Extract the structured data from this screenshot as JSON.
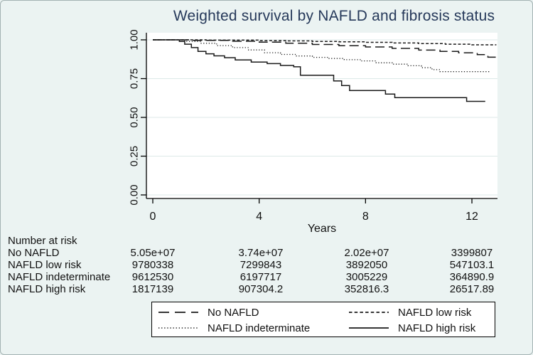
{
  "title": {
    "text": "Weighted survival by NAFLD and fibrosis status"
  },
  "axes": {
    "y": {
      "tick_labels": [
        "1.00",
        "0.75",
        "0.50",
        "0.25",
        "0.00"
      ],
      "tick_values": [
        1.0,
        0.75,
        0.5,
        0.25,
        0.0
      ]
    },
    "x": {
      "tick_labels": [
        "0",
        "4",
        "8",
        "12"
      ],
      "tick_values": [
        0,
        4,
        8,
        12
      ],
      "title": "Years"
    }
  },
  "risk_table": {
    "header": "Number at risk",
    "rows": [
      {
        "label": "No NAFLD",
        "values": [
          "5.05e+07",
          "3.74e+07",
          "2.02e+07",
          "3399807"
        ]
      },
      {
        "label": "NAFLD low risk",
        "values": [
          "9780338",
          "7299843",
          "3892050",
          "547103.1"
        ]
      },
      {
        "label": "NAFLD indeterminate",
        "values": [
          "9612530",
          "6197717",
          "3005229",
          "364890.9"
        ]
      },
      {
        "label": "NAFLD high risk",
        "values": [
          "1817139",
          "907304.2",
          "352816.3",
          "26517.89"
        ]
      }
    ]
  },
  "legend": {
    "items": [
      {
        "label": "No NAFLD",
        "style": "long-dash"
      },
      {
        "label": "NAFLD low risk",
        "style": "short-dash"
      },
      {
        "label": "NAFLD indeterminate",
        "style": "dotted"
      },
      {
        "label": "NAFLD high risk",
        "style": "solid"
      }
    ]
  },
  "colors": {
    "background": "#EBF3F2",
    "plot_bg": "#FFFFFF",
    "grid": "#DDE9E8",
    "axis": "#000000",
    "line": "#1A1A1A",
    "title": "#26395A",
    "legend_bg": "#FFFFFF",
    "legend_border": "#000000"
  },
  "chart_data": {
    "type": "line",
    "subtype": "step-survival",
    "title": "Weighted survival by NAFLD and fibrosis status",
    "xlabel": "Years",
    "ylabel": "",
    "xlim": [
      -0.25,
      13
    ],
    "ylim": [
      0,
      1.05
    ],
    "x_ticks": [
      0,
      4,
      8,
      12
    ],
    "y_ticks": [
      0,
      0.25,
      0.5,
      0.75,
      1.0
    ],
    "grid": "horizontal",
    "legend_position": "bottom",
    "series": [
      {
        "name": "No NAFLD",
        "line_style": "long-dash",
        "color": "#1A1A1A",
        "points": [
          [
            0,
            1.0
          ],
          [
            1.5,
            0.997
          ],
          [
            3,
            0.991
          ],
          [
            4,
            0.985
          ],
          [
            5,
            0.978
          ],
          [
            6,
            0.97
          ],
          [
            7,
            0.962
          ],
          [
            8,
            0.954
          ],
          [
            9,
            0.945
          ],
          [
            10,
            0.934
          ],
          [
            10.8,
            0.925
          ],
          [
            11.5,
            0.916
          ],
          [
            12.2,
            0.905
          ],
          [
            12.6,
            0.888
          ],
          [
            12.9,
            0.885
          ]
        ]
      },
      {
        "name": "NAFLD low risk",
        "line_style": "short-dash",
        "color": "#1A1A1A",
        "points": [
          [
            0,
            1.0
          ],
          [
            2,
            0.998
          ],
          [
            4,
            0.995
          ],
          [
            5,
            0.993
          ],
          [
            6,
            0.99
          ],
          [
            7,
            0.987
          ],
          [
            8,
            0.984
          ],
          [
            9,
            0.98
          ],
          [
            10,
            0.976
          ],
          [
            11,
            0.972
          ],
          [
            12,
            0.968
          ],
          [
            12.9,
            0.965
          ]
        ]
      },
      {
        "name": "NAFLD indeterminate",
        "line_style": "dotted",
        "color": "#1A1A1A",
        "points": [
          [
            0,
            1.0
          ],
          [
            1.2,
            0.99
          ],
          [
            1.8,
            0.978
          ],
          [
            2.4,
            0.963
          ],
          [
            3.0,
            0.95
          ],
          [
            3.6,
            0.935
          ],
          [
            4.2,
            0.917
          ],
          [
            4.8,
            0.906
          ],
          [
            5.4,
            0.896
          ],
          [
            6.0,
            0.887
          ],
          [
            6.6,
            0.88
          ],
          [
            7.2,
            0.872
          ],
          [
            7.8,
            0.864
          ],
          [
            8.4,
            0.852
          ],
          [
            9.0,
            0.843
          ],
          [
            9.6,
            0.833
          ],
          [
            10.1,
            0.82
          ],
          [
            10.5,
            0.808
          ],
          [
            10.8,
            0.795
          ],
          [
            12.7,
            0.795
          ]
        ]
      },
      {
        "name": "NAFLD high risk",
        "line_style": "solid",
        "color": "#1A1A1A",
        "points": [
          [
            0,
            1.0
          ],
          [
            0.85,
            1.0
          ],
          [
            1.0,
            0.99
          ],
          [
            1.2,
            0.972
          ],
          [
            1.45,
            0.95
          ],
          [
            1.7,
            0.925
          ],
          [
            2.0,
            0.91
          ],
          [
            2.3,
            0.897
          ],
          [
            2.7,
            0.885
          ],
          [
            3.1,
            0.87
          ],
          [
            3.7,
            0.857
          ],
          [
            4.3,
            0.847
          ],
          [
            4.8,
            0.835
          ],
          [
            5.3,
            0.826
          ],
          [
            5.55,
            0.772
          ],
          [
            6.8,
            0.735
          ],
          [
            7.1,
            0.705
          ],
          [
            7.4,
            0.673
          ],
          [
            8.75,
            0.65
          ],
          [
            9.1,
            0.627
          ],
          [
            11.8,
            0.603
          ],
          [
            12.5,
            0.603
          ]
        ]
      }
    ]
  }
}
